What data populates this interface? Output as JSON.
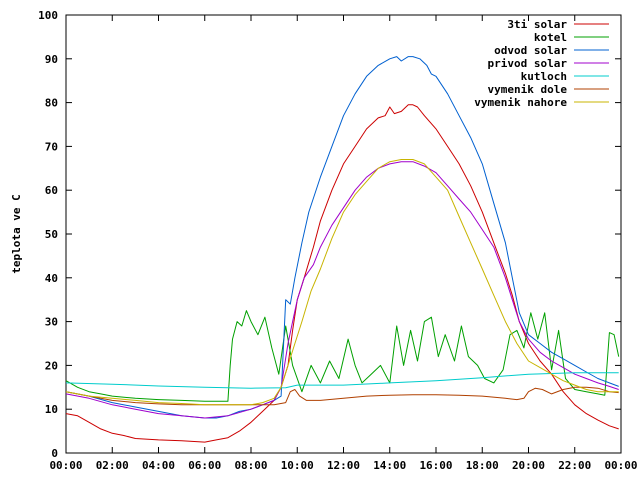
{
  "chart_data": {
    "type": "line",
    "title": "",
    "xlabel": "",
    "ylabel": "teplota ve C",
    "ylim": [
      0,
      100
    ],
    "yticks": [
      0,
      10,
      20,
      30,
      40,
      50,
      60,
      70,
      80,
      90,
      100
    ],
    "xlim": [
      0,
      24
    ],
    "xticks": [
      0,
      2,
      4,
      6,
      8,
      10,
      12,
      14,
      16,
      18,
      20,
      22,
      24
    ],
    "xtick_labels": [
      "00:00",
      "02:00",
      "04:00",
      "06:00",
      "08:00",
      "10:00",
      "12:00",
      "14:00",
      "16:00",
      "18:00",
      "20:00",
      "22:00",
      "00:00"
    ],
    "grid": false,
    "legend_position": "top-right",
    "series": [
      {
        "name": "3ti solar",
        "color": "#cc0000",
        "points": [
          [
            0,
            9
          ],
          [
            0.5,
            8.5
          ],
          [
            1,
            7
          ],
          [
            1.5,
            5.5
          ],
          [
            2,
            4.5
          ],
          [
            2.5,
            4
          ],
          [
            3,
            3.3
          ],
          [
            4,
            3
          ],
          [
            5,
            2.8
          ],
          [
            6,
            2.5
          ],
          [
            6.5,
            3
          ],
          [
            7,
            3.5
          ],
          [
            7.5,
            5
          ],
          [
            8,
            7
          ],
          [
            8.5,
            9.5
          ],
          [
            9,
            12
          ],
          [
            9.3,
            15
          ],
          [
            9.6,
            20
          ],
          [
            9.8,
            28
          ],
          [
            10,
            35
          ],
          [
            10.3,
            40
          ],
          [
            10.7,
            47
          ],
          [
            11,
            53
          ],
          [
            11.5,
            60
          ],
          [
            12,
            66
          ],
          [
            12.5,
            70
          ],
          [
            13,
            74
          ],
          [
            13.5,
            76.5
          ],
          [
            13.8,
            77
          ],
          [
            14,
            79
          ],
          [
            14.2,
            77.5
          ],
          [
            14.5,
            78
          ],
          [
            14.8,
            79.5
          ],
          [
            15,
            79.5
          ],
          [
            15.2,
            79
          ],
          [
            15.5,
            77
          ],
          [
            16,
            74
          ],
          [
            16.5,
            70
          ],
          [
            17,
            66
          ],
          [
            17.5,
            61
          ],
          [
            18,
            55
          ],
          [
            18.5,
            48
          ],
          [
            19,
            41
          ],
          [
            19.3,
            36
          ],
          [
            19.6,
            30
          ],
          [
            20,
            25
          ],
          [
            20.5,
            21
          ],
          [
            21,
            18
          ],
          [
            21.5,
            14
          ],
          [
            22,
            11
          ],
          [
            22.5,
            9
          ],
          [
            23,
            7.5
          ],
          [
            23.5,
            6.2
          ],
          [
            23.9,
            5.5
          ]
        ]
      },
      {
        "name": "kotel",
        "color": "#00a000",
        "points": [
          [
            0,
            16.5
          ],
          [
            0.5,
            15
          ],
          [
            1,
            14
          ],
          [
            1.5,
            13.5
          ],
          [
            2,
            13
          ],
          [
            3,
            12.5
          ],
          [
            4,
            12.2
          ],
          [
            5,
            12
          ],
          [
            6,
            11.8
          ],
          [
            7,
            11.8
          ],
          [
            7.1,
            20
          ],
          [
            7.2,
            26
          ],
          [
            7.4,
            30
          ],
          [
            7.6,
            29
          ],
          [
            7.8,
            32.5
          ],
          [
            8,
            30
          ],
          [
            8.3,
            27
          ],
          [
            8.6,
            31
          ],
          [
            8.9,
            24
          ],
          [
            9.2,
            18
          ],
          [
            9.5,
            29
          ],
          [
            9.8,
            20
          ],
          [
            10.2,
            14
          ],
          [
            10.6,
            20
          ],
          [
            11,
            16
          ],
          [
            11.4,
            21
          ],
          [
            11.8,
            17
          ],
          [
            12.2,
            26
          ],
          [
            12.5,
            20
          ],
          [
            12.8,
            16
          ],
          [
            13.2,
            18
          ],
          [
            13.6,
            20
          ],
          [
            14,
            16
          ],
          [
            14.3,
            29
          ],
          [
            14.6,
            20
          ],
          [
            14.9,
            28
          ],
          [
            15.2,
            21
          ],
          [
            15.5,
            30
          ],
          [
            15.8,
            31
          ],
          [
            16.1,
            22
          ],
          [
            16.4,
            27
          ],
          [
            16.8,
            21
          ],
          [
            17.1,
            29
          ],
          [
            17.4,
            22
          ],
          [
            17.8,
            20
          ],
          [
            18.1,
            17
          ],
          [
            18.5,
            16
          ],
          [
            18.9,
            19
          ],
          [
            19.2,
            27
          ],
          [
            19.5,
            28
          ],
          [
            19.8,
            24
          ],
          [
            20.1,
            32
          ],
          [
            20.4,
            26
          ],
          [
            20.7,
            32
          ],
          [
            21,
            19
          ],
          [
            21.3,
            28
          ],
          [
            21.6,
            17
          ],
          [
            22,
            14.5
          ],
          [
            22.5,
            14
          ],
          [
            23,
            13.5
          ],
          [
            23.3,
            13.2
          ],
          [
            23.5,
            27.5
          ],
          [
            23.7,
            27
          ],
          [
            23.9,
            22
          ]
        ]
      },
      {
        "name": "odvod solar",
        "color": "#0060d0",
        "points": [
          [
            0,
            14
          ],
          [
            1,
            13
          ],
          [
            2,
            11.5
          ],
          [
            3,
            10.5
          ],
          [
            4,
            9.5
          ],
          [
            5,
            8.5
          ],
          [
            6,
            8
          ],
          [
            6.5,
            8
          ],
          [
            7,
            8.5
          ],
          [
            7.5,
            9.5
          ],
          [
            8,
            10
          ],
          [
            8.5,
            11
          ],
          [
            9,
            12
          ],
          [
            9.3,
            13
          ],
          [
            9.5,
            35
          ],
          [
            9.7,
            34
          ],
          [
            9.9,
            40
          ],
          [
            10.2,
            48
          ],
          [
            10.5,
            55
          ],
          [
            11,
            63
          ],
          [
            11.5,
            70
          ],
          [
            12,
            77
          ],
          [
            12.5,
            82
          ],
          [
            13,
            86
          ],
          [
            13.5,
            88.5
          ],
          [
            14,
            90
          ],
          [
            14.3,
            90.5
          ],
          [
            14.5,
            89.5
          ],
          [
            14.8,
            90.5
          ],
          [
            15,
            90.5
          ],
          [
            15.3,
            90
          ],
          [
            15.6,
            88.5
          ],
          [
            15.8,
            86.5
          ],
          [
            16,
            86
          ],
          [
            16.5,
            82
          ],
          [
            17,
            77
          ],
          [
            17.5,
            72
          ],
          [
            18,
            66
          ],
          [
            18.5,
            57
          ],
          [
            19,
            48
          ],
          [
            19.3,
            40
          ],
          [
            19.6,
            32
          ],
          [
            20,
            27
          ],
          [
            20.5,
            25
          ],
          [
            21,
            23
          ],
          [
            21.5,
            21.5
          ],
          [
            22,
            20
          ],
          [
            22.5,
            18.5
          ],
          [
            23,
            17
          ],
          [
            23.5,
            16
          ],
          [
            23.9,
            15.2
          ]
        ]
      },
      {
        "name": "privod solar",
        "color": "#a000cc",
        "points": [
          [
            0,
            13.5
          ],
          [
            1,
            12.5
          ],
          [
            2,
            11
          ],
          [
            3,
            10
          ],
          [
            4,
            9
          ],
          [
            5,
            8.5
          ],
          [
            6,
            8
          ],
          [
            7,
            8.5
          ],
          [
            8,
            10
          ],
          [
            8.5,
            11
          ],
          [
            9,
            12
          ],
          [
            9.3,
            15
          ],
          [
            9.6,
            25
          ],
          [
            9.8,
            30
          ],
          [
            10,
            35
          ],
          [
            10.3,
            40
          ],
          [
            10.7,
            43
          ],
          [
            11,
            47
          ],
          [
            11.5,
            52
          ],
          [
            12,
            56
          ],
          [
            12.5,
            60
          ],
          [
            13,
            63
          ],
          [
            13.5,
            65
          ],
          [
            14,
            66
          ],
          [
            14.5,
            66.5
          ],
          [
            15,
            66.5
          ],
          [
            15.5,
            65.5
          ],
          [
            16,
            64
          ],
          [
            16.5,
            61
          ],
          [
            17,
            58
          ],
          [
            17.5,
            55
          ],
          [
            18,
            51
          ],
          [
            18.5,
            47
          ],
          [
            19,
            40
          ],
          [
            19.3,
            35
          ],
          [
            19.6,
            30
          ],
          [
            20,
            26
          ],
          [
            20.5,
            23
          ],
          [
            21,
            21
          ],
          [
            21.5,
            19.5
          ],
          [
            22,
            18
          ],
          [
            22.5,
            17
          ],
          [
            23,
            16
          ],
          [
            23.5,
            15.2
          ],
          [
            23.9,
            14.5
          ]
        ]
      },
      {
        "name": "kutloch",
        "color": "#00cccc",
        "points": [
          [
            0,
            16
          ],
          [
            2,
            15.7
          ],
          [
            4,
            15.3
          ],
          [
            6,
            15
          ],
          [
            8,
            14.8
          ],
          [
            9.5,
            14.9
          ],
          [
            10,
            15.5
          ],
          [
            12,
            15.5
          ],
          [
            14,
            16
          ],
          [
            16,
            16.5
          ],
          [
            18,
            17.2
          ],
          [
            20,
            18
          ],
          [
            22,
            18.3
          ],
          [
            23.9,
            18.3
          ]
        ]
      },
      {
        "name": "vymenik dole",
        "color": "#b04000",
        "points": [
          [
            0,
            14
          ],
          [
            1,
            13
          ],
          [
            2,
            12
          ],
          [
            3,
            11.5
          ],
          [
            4,
            11.2
          ],
          [
            5,
            11
          ],
          [
            6,
            11
          ],
          [
            7,
            11
          ],
          [
            8,
            11
          ],
          [
            9,
            11
          ],
          [
            9.5,
            11.5
          ],
          [
            9.7,
            14
          ],
          [
            9.9,
            14.5
          ],
          [
            10.1,
            13
          ],
          [
            10.4,
            12
          ],
          [
            11,
            12
          ],
          [
            12,
            12.5
          ],
          [
            13,
            13
          ],
          [
            14,
            13.2
          ],
          [
            15,
            13.3
          ],
          [
            16,
            13.3
          ],
          [
            17,
            13.2
          ],
          [
            18,
            13
          ],
          [
            19,
            12.5
          ],
          [
            19.5,
            12.2
          ],
          [
            19.8,
            12.5
          ],
          [
            20,
            14
          ],
          [
            20.3,
            14.8
          ],
          [
            20.6,
            14.5
          ],
          [
            21,
            13.5
          ],
          [
            21.5,
            14.5
          ],
          [
            22,
            15
          ],
          [
            22.5,
            15
          ],
          [
            23,
            14.8
          ],
          [
            23.5,
            14
          ],
          [
            23.9,
            13.8
          ]
        ]
      },
      {
        "name": "vymenik nahore",
        "color": "#c8b400",
        "points": [
          [
            0,
            14
          ],
          [
            1,
            13
          ],
          [
            2,
            12.5
          ],
          [
            3,
            12
          ],
          [
            4,
            11.5
          ],
          [
            5,
            11.3
          ],
          [
            6,
            11
          ],
          [
            7,
            11
          ],
          [
            8,
            11
          ],
          [
            8.5,
            11.5
          ],
          [
            9,
            12.5
          ],
          [
            9.3,
            15
          ],
          [
            9.6,
            20
          ],
          [
            9.9,
            25
          ],
          [
            10.2,
            30
          ],
          [
            10.6,
            37
          ],
          [
            11,
            42
          ],
          [
            11.5,
            49
          ],
          [
            12,
            55
          ],
          [
            12.5,
            59
          ],
          [
            13,
            62
          ],
          [
            13.5,
            65
          ],
          [
            14,
            66.5
          ],
          [
            14.5,
            67
          ],
          [
            15,
            67
          ],
          [
            15.5,
            66
          ],
          [
            16,
            63
          ],
          [
            16.5,
            60
          ],
          [
            17,
            54
          ],
          [
            17.5,
            48
          ],
          [
            18,
            42
          ],
          [
            18.5,
            36
          ],
          [
            19,
            30
          ],
          [
            19.5,
            25
          ],
          [
            20,
            21
          ],
          [
            20.5,
            19.5
          ],
          [
            21,
            18
          ],
          [
            21.5,
            16.5
          ],
          [
            22,
            15.5
          ],
          [
            22.5,
            14.5
          ],
          [
            23,
            14
          ],
          [
            23.5,
            14
          ],
          [
            23.9,
            14
          ]
        ]
      }
    ]
  }
}
